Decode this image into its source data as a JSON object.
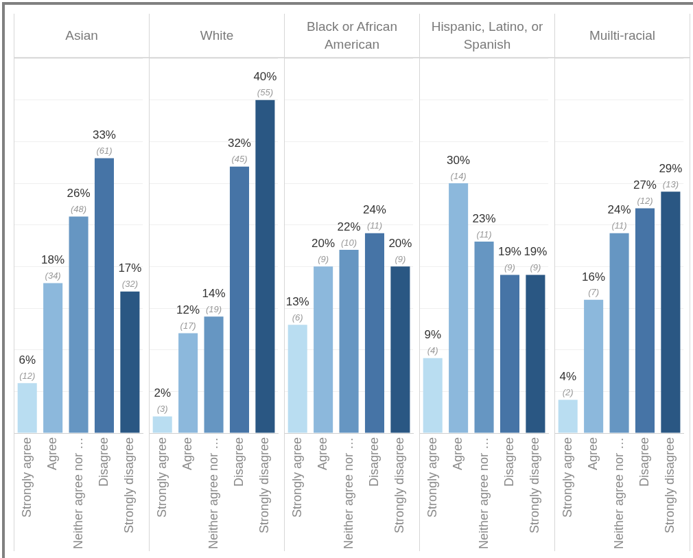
{
  "chart_data": [
    {
      "type": "bar",
      "title": "Asian",
      "categories": [
        "Strongly agree",
        "Agree",
        "Neither agree nor …",
        "Disagree",
        "Strongly disagree"
      ],
      "values": [
        6,
        18,
        26,
        33,
        17
      ],
      "colors": [
        "#b9ddf1",
        "#8cb8dc",
        "#6696c2",
        "#4674a6",
        "#2a5783"
      ],
      "value_labels": [
        "6%",
        "18%",
        "26%",
        "33%",
        "17%"
      ],
      "annotations": [
        {
          "text": "(12)",
          "x": "Strongly agree",
          "y": 6
        },
        {
          "text": "(34)",
          "x": "Agree",
          "y": 18
        },
        {
          "text": "(48)",
          "x": "Neither agree nor …",
          "y": 26
        },
        {
          "text": "(61)",
          "x": "Disagree",
          "y": 33
        },
        {
          "text": "(32)",
          "x": "Strongly disagree",
          "y": 17
        }
      ],
      "ylim": [
        0,
        45
      ],
      "yticks": [
        {
          "value": 0,
          "label": null
        },
        {
          "value": 5,
          "label": null
        },
        {
          "value": 10,
          "label": null
        },
        {
          "value": 15,
          "label": null
        },
        {
          "value": 20,
          "label": null
        },
        {
          "value": 25,
          "label": null
        },
        {
          "value": 30,
          "label": null
        },
        {
          "value": 35,
          "label": null
        },
        {
          "value": 40,
          "label": null
        },
        {
          "value": 45,
          "label": null
        }
      ],
      "grid": "y",
      "tick_labels": "x"
    },
    {
      "type": "bar",
      "title": "White",
      "categories": [
        "Strongly agree",
        "Agree",
        "Neither agree nor …",
        "Disagree",
        "Strongly disagree"
      ],
      "values": [
        2,
        12,
        14,
        32,
        40
      ],
      "colors": [
        "#b9ddf1",
        "#8cb8dc",
        "#6696c2",
        "#4674a6",
        "#2a5783"
      ],
      "value_labels": [
        "2%",
        "12%",
        "14%",
        "32%",
        "40%"
      ],
      "annotations": [
        {
          "text": "(3)",
          "x": "Strongly agree",
          "y": 2
        },
        {
          "text": "(17)",
          "x": "Agree",
          "y": 12
        },
        {
          "text": "(19)",
          "x": "Neither agree nor …",
          "y": 14
        },
        {
          "text": "(45)",
          "x": "Disagree",
          "y": 32
        },
        {
          "text": "(55)",
          "x": "Strongly disagree",
          "y": 40
        }
      ],
      "ylim": [
        0,
        45
      ],
      "yticks": [
        {
          "value": 0,
          "label": null
        },
        {
          "value": 5,
          "label": null
        },
        {
          "value": 10,
          "label": null
        },
        {
          "value": 15,
          "label": null
        },
        {
          "value": 20,
          "label": null
        },
        {
          "value": 25,
          "label": null
        },
        {
          "value": 30,
          "label": null
        },
        {
          "value": 35,
          "label": null
        },
        {
          "value": 40,
          "label": null
        },
        {
          "value": 45,
          "label": null
        }
      ],
      "grid": "y",
      "tick_labels": "x"
    },
    {
      "type": "bar",
      "title": "Black or African American",
      "categories": [
        "Strongly agree",
        "Agree",
        "Neither agree nor …",
        "Disagree",
        "Strongly disagree"
      ],
      "values": [
        13,
        20,
        22,
        24,
        20
      ],
      "colors": [
        "#b9ddf1",
        "#8cb8dc",
        "#6696c2",
        "#4674a6",
        "#2a5783"
      ],
      "value_labels": [
        "13%",
        "20%",
        "22%",
        "24%",
        "20%"
      ],
      "annotations": [
        {
          "text": "(6)",
          "x": "Strongly agree",
          "y": 13
        },
        {
          "text": "(9)",
          "x": "Agree",
          "y": 20
        },
        {
          "text": "(10)",
          "x": "Neither agree nor …",
          "y": 22
        },
        {
          "text": "(11)",
          "x": "Disagree",
          "y": 24
        },
        {
          "text": "(9)",
          "x": "Strongly disagree",
          "y": 20
        }
      ],
      "ylim": [
        0,
        45
      ],
      "yticks": [
        {
          "value": 0,
          "label": null
        },
        {
          "value": 5,
          "label": null
        },
        {
          "value": 10,
          "label": null
        },
        {
          "value": 15,
          "label": null
        },
        {
          "value": 20,
          "label": null
        },
        {
          "value": 25,
          "label": null
        },
        {
          "value": 30,
          "label": null
        },
        {
          "value": 35,
          "label": null
        },
        {
          "value": 40,
          "label": null
        },
        {
          "value": 45,
          "label": null
        }
      ],
      "grid": "y",
      "tick_labels": "x"
    },
    {
      "type": "bar",
      "title": "Hispanic, Latino, or Spanish",
      "categories": [
        "Strongly agree",
        "Agree",
        "Neither agree nor …",
        "Disagree",
        "Strongly disagree"
      ],
      "values": [
        9,
        30,
        23,
        19,
        19
      ],
      "colors": [
        "#b9ddf1",
        "#8cb8dc",
        "#6696c2",
        "#4674a6",
        "#2a5783"
      ],
      "value_labels": [
        "9%",
        "30%",
        "23%",
        "19%",
        "19%"
      ],
      "annotations": [
        {
          "text": "(4)",
          "x": "Strongly agree",
          "y": 9
        },
        {
          "text": "(14)",
          "x": "Agree",
          "y": 30
        },
        {
          "text": "(11)",
          "x": "Neither agree nor …",
          "y": 23
        },
        {
          "text": "(9)",
          "x": "Disagree",
          "y": 19
        },
        {
          "text": "(9)",
          "x": "Strongly disagree",
          "y": 19
        }
      ],
      "ylim": [
        0,
        45
      ],
      "yticks": [
        {
          "value": 0,
          "label": null
        },
        {
          "value": 5,
          "label": null
        },
        {
          "value": 10,
          "label": null
        },
        {
          "value": 15,
          "label": null
        },
        {
          "value": 20,
          "label": null
        },
        {
          "value": 25,
          "label": null
        },
        {
          "value": 30,
          "label": null
        },
        {
          "value": 35,
          "label": null
        },
        {
          "value": 40,
          "label": null
        },
        {
          "value": 45,
          "label": null
        }
      ],
      "grid": "y",
      "tick_labels": "x"
    },
    {
      "type": "bar",
      "title": "Muilti-racial",
      "categories": [
        "Strongly agree",
        "Agree",
        "Neither agree nor …",
        "Disagree",
        "Strongly disagree"
      ],
      "values": [
        4,
        16,
        24,
        27,
        29
      ],
      "colors": [
        "#b9ddf1",
        "#8cb8dc",
        "#6696c2",
        "#4674a6",
        "#2a5783"
      ],
      "value_labels": [
        "4%",
        "16%",
        "24%",
        "27%",
        "29%"
      ],
      "annotations": [
        {
          "text": "(2)",
          "x": "Strongly agree",
          "y": 4
        },
        {
          "text": "(7)",
          "x": "Agree",
          "y": 16
        },
        {
          "text": "(11)",
          "x": "Neither agree nor …",
          "y": 24
        },
        {
          "text": "(12)",
          "x": "Disagree",
          "y": 27
        },
        {
          "text": "(13)",
          "x": "Strongly disagree",
          "y": 29
        }
      ],
      "ylim": [
        0,
        45
      ],
      "yticks": [
        {
          "value": 0,
          "label": null
        },
        {
          "value": 5,
          "label": null
        },
        {
          "value": 10,
          "label": null
        },
        {
          "value": 15,
          "label": null
        },
        {
          "value": 20,
          "label": null
        },
        {
          "value": 25,
          "label": null
        },
        {
          "value": 30,
          "label": null
        },
        {
          "value": 35,
          "label": null
        },
        {
          "value": 40,
          "label": null
        },
        {
          "value": 45,
          "label": null
        }
      ],
      "grid": "y",
      "tick_labels": "x"
    }
  ]
}
